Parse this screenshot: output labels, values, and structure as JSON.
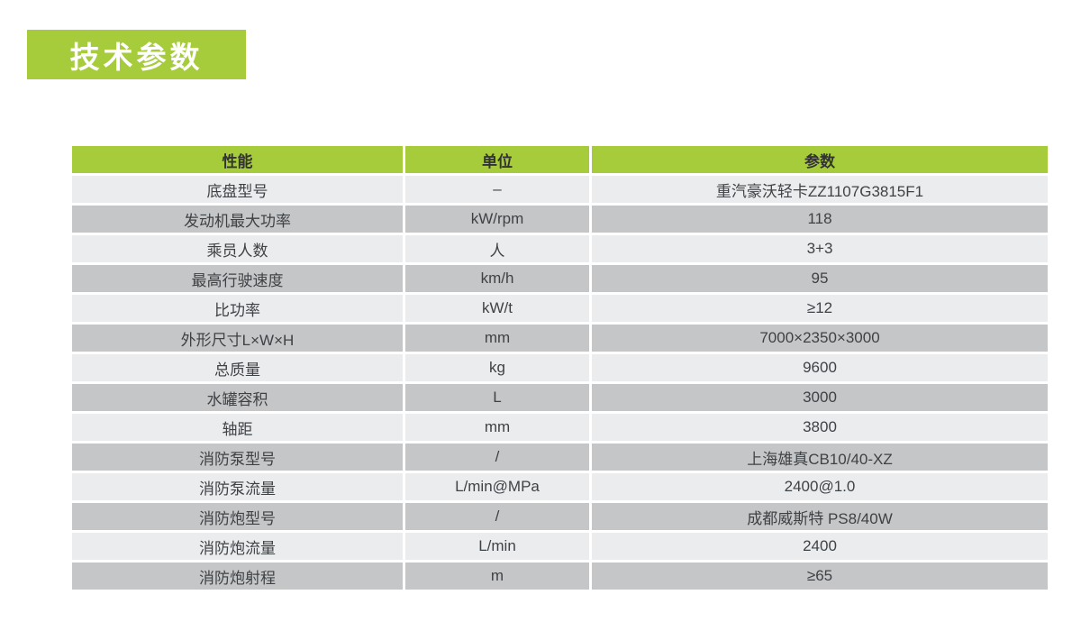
{
  "page": {
    "title_badge": "技术参数"
  },
  "colors": {
    "green": "#a6cc3c",
    "row_light": "#ebecee",
    "row_dark": "#c5c6c8",
    "header_text": "#333333",
    "cell_text": "#3f4245"
  },
  "table": {
    "headers": [
      "性能",
      "单位",
      "参数"
    ],
    "rows": [
      [
        "底盘型号",
        "–",
        "重汽豪沃轻卡ZZ1107G3815F1"
      ],
      [
        "发动机最大功率",
        "kW/rpm",
        "118"
      ],
      [
        "乘员人数",
        "人",
        "3+3"
      ],
      [
        "最高行驶速度",
        "km/h",
        "95"
      ],
      [
        "比功率",
        "kW/t",
        "≥12"
      ],
      [
        "外形尺寸L×W×H",
        "mm",
        "7000×2350×3000"
      ],
      [
        "总质量",
        "kg",
        "9600"
      ],
      [
        "水罐容积",
        "L",
        "3000"
      ],
      [
        "轴距",
        "mm",
        "3800"
      ],
      [
        "消防泵型号",
        "/",
        "上海雄真CB10/40-XZ"
      ],
      [
        "消防泵流量",
        "L/min@MPa",
        "2400@1.0"
      ],
      [
        "消防炮型号",
        "/",
        "成都威斯特 PS8/40W"
      ],
      [
        "消防炮流量",
        "L/min",
        "2400"
      ],
      [
        "消防炮射程",
        "m",
        "≥65"
      ]
    ]
  }
}
